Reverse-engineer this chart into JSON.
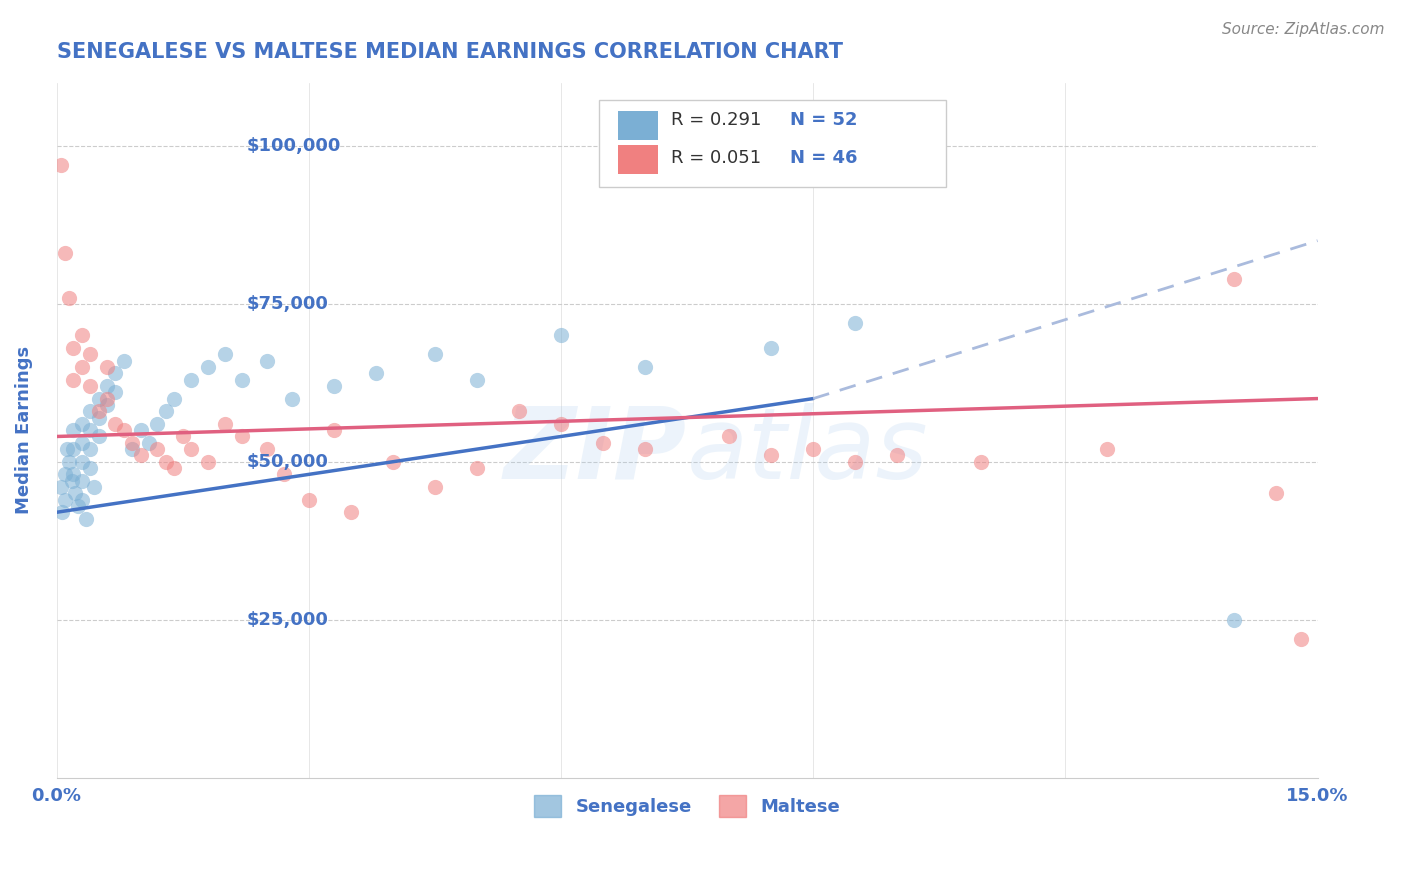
{
  "title": "SENEGALESE VS MALTESE MEDIAN EARNINGS CORRELATION CHART",
  "source": "Source: ZipAtlas.com",
  "ylabel": "Median Earnings",
  "xlim": [
    0.0,
    0.15
  ],
  "ylim": [
    0,
    110000
  ],
  "yticks": [
    25000,
    50000,
    75000,
    100000
  ],
  "ytick_labels": [
    "$25,000",
    "$50,000",
    "$75,000",
    "$100,000"
  ],
  "xticks": [
    0.0,
    0.03,
    0.06,
    0.09,
    0.12,
    0.15
  ],
  "xtick_labels": [
    "0.0%",
    "",
    "",
    "",
    "",
    "15.0%"
  ],
  "blue_color": "#7BAFD4",
  "pink_color": "#F08080",
  "blue_line_color": "#4472C4",
  "pink_line_color": "#E06080",
  "title_color": "#4472C4",
  "axis_label_color": "#4472C4",
  "watermark": "ZIPatlas",
  "sen_x": [
    0.0005,
    0.0007,
    0.001,
    0.001,
    0.0012,
    0.0015,
    0.0018,
    0.002,
    0.002,
    0.002,
    0.0022,
    0.0025,
    0.003,
    0.003,
    0.003,
    0.003,
    0.003,
    0.0035,
    0.004,
    0.004,
    0.004,
    0.004,
    0.0045,
    0.005,
    0.005,
    0.005,
    0.006,
    0.006,
    0.007,
    0.007,
    0.008,
    0.009,
    0.01,
    0.011,
    0.012,
    0.013,
    0.014,
    0.016,
    0.018,
    0.02,
    0.022,
    0.025,
    0.028,
    0.033,
    0.038,
    0.045,
    0.05,
    0.06,
    0.07,
    0.085,
    0.095,
    0.14
  ],
  "sen_y": [
    46000,
    42000,
    48000,
    44000,
    52000,
    50000,
    47000,
    55000,
    52000,
    48000,
    45000,
    43000,
    56000,
    53000,
    50000,
    47000,
    44000,
    41000,
    58000,
    55000,
    52000,
    49000,
    46000,
    60000,
    57000,
    54000,
    62000,
    59000,
    64000,
    61000,
    66000,
    52000,
    55000,
    53000,
    56000,
    58000,
    60000,
    63000,
    65000,
    67000,
    63000,
    66000,
    60000,
    62000,
    64000,
    67000,
    63000,
    70000,
    65000,
    68000,
    72000,
    25000
  ],
  "mal_x": [
    0.0005,
    0.001,
    0.0015,
    0.002,
    0.002,
    0.003,
    0.003,
    0.004,
    0.004,
    0.005,
    0.006,
    0.006,
    0.007,
    0.008,
    0.009,
    0.01,
    0.012,
    0.013,
    0.014,
    0.015,
    0.016,
    0.018,
    0.02,
    0.022,
    0.025,
    0.027,
    0.03,
    0.033,
    0.035,
    0.04,
    0.045,
    0.05,
    0.055,
    0.06,
    0.065,
    0.07,
    0.08,
    0.085,
    0.09,
    0.095,
    0.1,
    0.11,
    0.125,
    0.14,
    0.145,
    0.148
  ],
  "mal_y": [
    97000,
    83000,
    76000,
    68000,
    63000,
    70000,
    65000,
    67000,
    62000,
    58000,
    65000,
    60000,
    56000,
    55000,
    53000,
    51000,
    52000,
    50000,
    49000,
    54000,
    52000,
    50000,
    56000,
    54000,
    52000,
    48000,
    44000,
    55000,
    42000,
    50000,
    46000,
    49000,
    58000,
    56000,
    53000,
    52000,
    54000,
    51000,
    52000,
    50000,
    51000,
    50000,
    52000,
    79000,
    45000,
    22000
  ]
}
